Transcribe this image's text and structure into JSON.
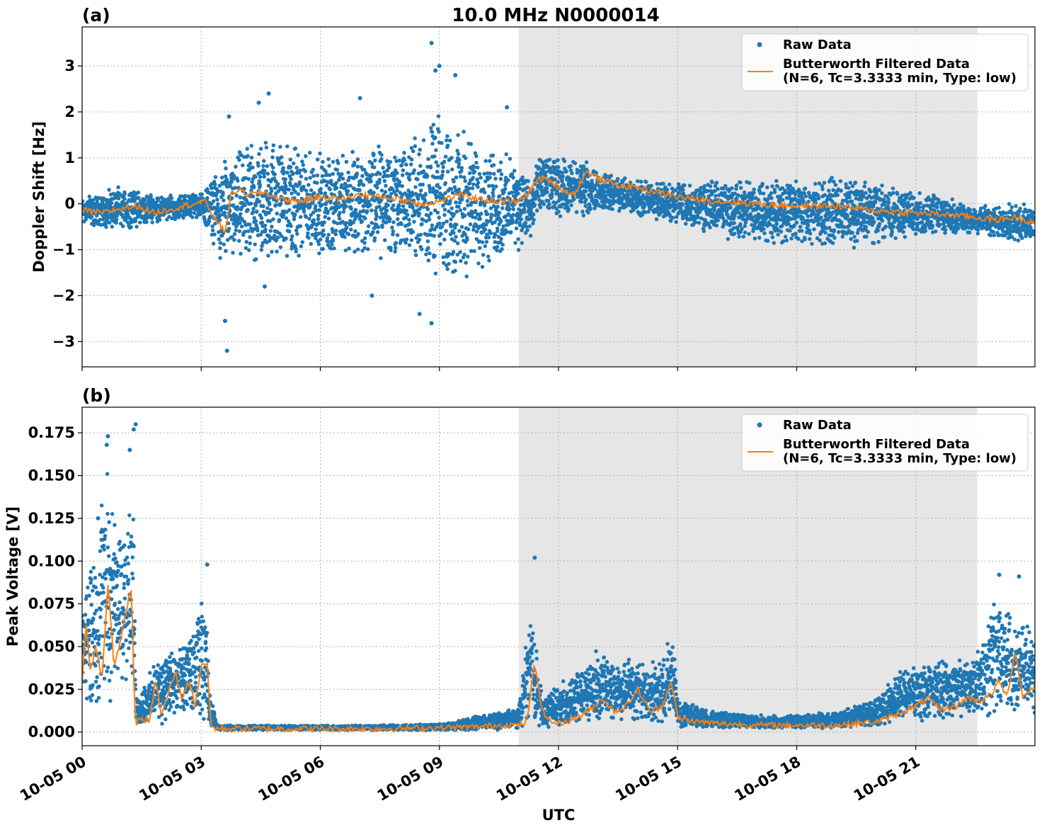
{
  "figure": {
    "title": "10.0 MHz N0000014",
    "xlabel": "UTC"
  },
  "chart_data": [
    {
      "type": "scatter",
      "panel_label": "(a)",
      "ylabel": "Doppler Shift [Hz]",
      "x_unit": "hours since 10-05 00:00 UTC",
      "xlim": [
        0,
        24
      ],
      "ylim": [
        -3.55,
        3.85
      ],
      "yticks": [
        -3,
        -2,
        -1,
        0,
        1,
        2,
        3
      ],
      "yticklabels": [
        "−3",
        "−2",
        "−1",
        "0",
        "1",
        "2",
        "3"
      ],
      "shaded_x_range": [
        11.0,
        22.55
      ],
      "grid": true,
      "legend": "top-right",
      "series": [
        {
          "name": "Raw Data",
          "kind": "points",
          "color": "#1f77b4",
          "envelope": {
            "x": [
              0,
              1,
              2,
              3,
              3.5,
              4.5,
              6,
              7.5,
              8.5,
              9,
              10.5,
              11.05,
              11.3,
              11.5,
              12.5,
              13.5,
              15,
              16.5,
              18,
              19.5,
              21,
              22.5,
              24
            ],
            "upper": [
              0.2,
              0.4,
              0.2,
              0.25,
              0.9,
              1.6,
              1.2,
              1.4,
              1.6,
              2.0,
              1.2,
              1.0,
              0.5,
              1.1,
              1.0,
              0.6,
              0.5,
              0.6,
              0.6,
              0.6,
              0.3,
              0.0,
              0.0
            ],
            "lower": [
              -0.5,
              -0.6,
              -0.4,
              -0.3,
              -1.3,
              -1.4,
              -1.2,
              -1.3,
              -1.4,
              -1.8,
              -1.4,
              -1.0,
              -0.9,
              -0.3,
              -0.3,
              -0.2,
              -0.5,
              -0.9,
              -0.9,
              -1.0,
              -0.7,
              -0.7,
              -0.9
            ]
          },
          "outliers": [
            {
              "x": 3.65,
              "y": -3.2
            },
            {
              "x": 3.6,
              "y": -2.55
            },
            {
              "x": 3.7,
              "y": 1.9
            },
            {
              "x": 4.7,
              "y": 2.4
            },
            {
              "x": 4.45,
              "y": 2.2
            },
            {
              "x": 7.0,
              "y": 2.3
            },
            {
              "x": 8.8,
              "y": 3.5
            },
            {
              "x": 9.0,
              "y": 3.0
            },
            {
              "x": 8.9,
              "y": 2.9
            },
            {
              "x": 9.4,
              "y": 2.8
            },
            {
              "x": 8.8,
              "y": -2.6
            },
            {
              "x": 10.7,
              "y": 2.1
            },
            {
              "x": 8.5,
              "y": -2.4
            },
            {
              "x": 7.3,
              "y": -2.0
            },
            {
              "x": 4.6,
              "y": -1.8
            }
          ]
        },
        {
          "name": "Butterworth Filtered Data\n(N=6, Tc=3.3333 min, Type: low)",
          "kind": "line",
          "color": "#ff7f0e",
          "x": [
            0,
            0.5,
            1.0,
            1.4,
            1.8,
            2.3,
            2.8,
            3.1,
            3.4,
            3.6,
            3.75,
            3.9,
            4.2,
            4.6,
            5.0,
            5.5,
            6.0,
            6.5,
            7.0,
            7.5,
            8.0,
            8.5,
            9.0,
            9.5,
            10.0,
            10.5,
            11.0,
            11.3,
            11.5,
            11.8,
            12.1,
            12.4,
            12.7,
            13.0,
            13.5,
            14.0,
            14.5,
            15.0,
            16.0,
            17.0,
            18.0,
            19.0,
            20.0,
            21.0,
            22.0,
            22.5,
            23.0,
            23.5,
            24.0
          ],
          "y": [
            -0.15,
            -0.2,
            -0.1,
            -0.05,
            -0.2,
            -0.1,
            0.0,
            0.05,
            -0.4,
            -0.6,
            0.2,
            0.3,
            0.2,
            0.25,
            0.1,
            0.05,
            0.15,
            0.1,
            0.2,
            0.15,
            0.1,
            0.0,
            0.05,
            0.2,
            0.1,
            0.05,
            0.05,
            0.3,
            0.55,
            0.5,
            0.3,
            0.2,
            0.7,
            0.55,
            0.4,
            0.35,
            0.25,
            0.15,
            0.05,
            0.0,
            -0.05,
            -0.05,
            -0.15,
            -0.2,
            -0.25,
            -0.3,
            -0.35,
            -0.3,
            -0.4
          ]
        }
      ]
    },
    {
      "type": "scatter",
      "panel_label": "(b)",
      "ylabel": "Peak Voltage [V]",
      "x_unit": "hours since 10-05 00:00 UTC",
      "xlim": [
        0,
        24
      ],
      "ylim": [
        -0.008,
        0.19
      ],
      "yticks": [
        0.0,
        0.025,
        0.05,
        0.075,
        0.1,
        0.125,
        0.15,
        0.175
      ],
      "yticklabels": [
        "0.000",
        "0.025",
        "0.050",
        "0.075",
        "0.100",
        "0.125",
        "0.150",
        "0.175"
      ],
      "xticks": [
        0,
        3,
        6,
        9,
        12,
        15,
        18,
        21
      ],
      "xticklabels": [
        "10-05 00",
        "10-05 03",
        "10-05 06",
        "10-05 09",
        "10-05 12",
        "10-05 15",
        "10-05 18",
        "10-05 21"
      ],
      "shaded_x_range": [
        11.0,
        22.55
      ],
      "grid": true,
      "legend": "top-right",
      "series": [
        {
          "name": "Raw Data",
          "kind": "points",
          "color": "#1f77b4",
          "envelope": {
            "x": [
              0,
              0.3,
              0.6,
              0.9,
              1.1,
              1.3,
              1.35,
              1.6,
              2.0,
              2.4,
              2.8,
              3.1,
              3.2,
              3.4,
              5.0,
              7.0,
              9.0,
              10.5,
              11.0,
              11.3,
              11.6,
              12.0,
              12.5,
              13.0,
              13.5,
              14.0,
              14.5,
              14.9,
              15.0,
              16.0,
              17.0,
              18.0,
              19.0,
              20.0,
              20.5,
              21.0,
              22.0,
              22.5,
              23.0,
              23.5,
              24.0
            ],
            "upper": [
              0.09,
              0.11,
              0.16,
              0.12,
              0.15,
              0.14,
              0.02,
              0.03,
              0.05,
              0.05,
              0.06,
              0.09,
              0.03,
              0.004,
              0.004,
              0.004,
              0.005,
              0.012,
              0.015,
              0.08,
              0.02,
              0.03,
              0.035,
              0.05,
              0.045,
              0.045,
              0.04,
              0.06,
              0.02,
              0.012,
              0.01,
              0.01,
              0.012,
              0.02,
              0.035,
              0.04,
              0.045,
              0.05,
              0.08,
              0.07,
              0.06
            ],
            "lower": [
              0.01,
              0.01,
              0.015,
              0.02,
              0.025,
              0.025,
              0.002,
              0.003,
              0.004,
              0.005,
              0.006,
              0.006,
              0.002,
              0.001,
              0.001,
              0.001,
              0.001,
              0.001,
              0.002,
              0.003,
              0.002,
              0.003,
              0.004,
              0.004,
              0.004,
              0.004,
              0.004,
              0.004,
              0.002,
              0.002,
              0.002,
              0.002,
              0.002,
              0.003,
              0.005,
              0.006,
              0.007,
              0.008,
              0.009,
              0.009,
              0.009
            ]
          },
          "outliers": [
            {
              "x": 0.65,
              "y": 0.173
            },
            {
              "x": 0.62,
              "y": 0.168
            },
            {
              "x": 1.35,
              "y": 0.18
            },
            {
              "x": 1.3,
              "y": 0.177
            },
            {
              "x": 1.2,
              "y": 0.165
            },
            {
              "x": 3.15,
              "y": 0.098
            },
            {
              "x": 11.4,
              "y": 0.102
            },
            {
              "x": 23.1,
              "y": 0.092
            },
            {
              "x": 23.6,
              "y": 0.091
            },
            {
              "x": 0.4,
              "y": 0.125
            }
          ]
        },
        {
          "name": "Butterworth Filtered Data\n(N=6, Tc=3.3333 min, Type: low)",
          "kind": "line",
          "color": "#ff7f0e",
          "x": [
            0,
            0.1,
            0.2,
            0.35,
            0.5,
            0.65,
            0.8,
            0.95,
            1.1,
            1.25,
            1.3,
            1.35,
            1.5,
            1.7,
            1.85,
            2.0,
            2.2,
            2.35,
            2.5,
            2.7,
            2.85,
            3.0,
            3.15,
            3.25,
            3.4,
            4.0,
            5.0,
            6.0,
            7.0,
            8.0,
            9.0,
            10.0,
            10.5,
            11.0,
            11.2,
            11.4,
            11.6,
            11.8,
            12.0,
            12.3,
            12.6,
            12.9,
            13.1,
            13.4,
            13.7,
            14.0,
            14.3,
            14.6,
            14.85,
            15.0,
            15.5,
            16.0,
            17.0,
            18.0,
            19.0,
            20.0,
            20.5,
            21.0,
            21.3,
            21.6,
            22.0,
            22.3,
            22.6,
            22.9,
            23.1,
            23.3,
            23.5,
            23.7,
            24.0
          ],
          "y": [
            0.03,
            0.065,
            0.035,
            0.05,
            0.03,
            0.088,
            0.04,
            0.05,
            0.07,
            0.085,
            0.03,
            0.005,
            0.008,
            0.006,
            0.03,
            0.01,
            0.025,
            0.035,
            0.02,
            0.03,
            0.015,
            0.04,
            0.04,
            0.003,
            0.002,
            0.002,
            0.002,
            0.002,
            0.002,
            0.002,
            0.0025,
            0.003,
            0.004,
            0.004,
            0.006,
            0.04,
            0.012,
            0.006,
            0.005,
            0.007,
            0.01,
            0.015,
            0.02,
            0.012,
            0.015,
            0.025,
            0.012,
            0.015,
            0.03,
            0.008,
            0.006,
            0.005,
            0.004,
            0.004,
            0.004,
            0.006,
            0.01,
            0.015,
            0.02,
            0.013,
            0.015,
            0.02,
            0.018,
            0.022,
            0.03,
            0.02,
            0.048,
            0.02,
            0.028
          ]
        }
      ]
    }
  ]
}
